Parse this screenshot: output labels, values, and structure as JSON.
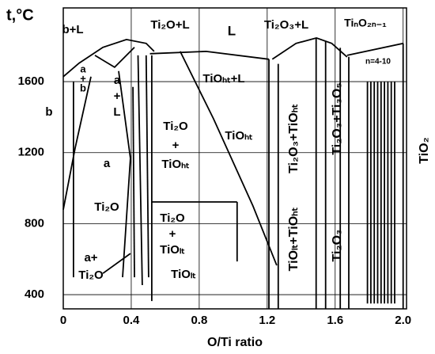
{
  "chart_data": {
    "type": "phase-diagram",
    "xlabel": "O/Ti ratio",
    "ylabel": "t,°C",
    "xlim": [
      0,
      2.02
    ],
    "ylim": [
      320,
      2015
    ],
    "xticks": [
      0,
      0.4,
      0.8,
      1.2,
      1.6,
      {
        "value": 2,
        "label": "2.0"
      }
    ],
    "yticks": [
      400,
      800,
      1200,
      1600
    ],
    "grid": true,
    "series": [
      {
        "color": "#000",
        "x": [
          0,
          0.093,
          0.233,
          0.372,
          0.488,
          0.535
        ],
        "values": [
          1628,
          1704,
          1793,
          1837,
          1815,
          1770
        ]
      },
      {
        "color": "#000",
        "x": [
          0.51,
          0.84,
          1.21
        ],
        "values": [
          1757,
          1770,
          1726
        ]
      },
      {
        "color": "#000",
        "x": [
          1.23,
          1.37,
          1.49,
          1.58,
          1.67
        ],
        "values": [
          1726,
          1815,
          1846,
          1815,
          1739
        ]
      },
      {
        "color": "#000",
        "x": [
          1.67,
          2.0
        ],
        "values": [
          1748,
          1815
        ]
      },
      {
        "color": "#000",
        "x": [
          0.186,
          0.302,
          0.419
        ],
        "values": [
          1748,
          1681,
          1793
        ]
      },
      {
        "color": "#000",
        "x": [
          0,
          0.07,
          0.163
        ],
        "values": [
          879,
          1226,
          1628
        ]
      },
      {
        "color": "#000",
        "x": [
          0.06,
          0.06
        ],
        "values": [
          1600,
          498
        ]
      },
      {
        "color": "#000",
        "x": [
          0.326,
          0.395,
          0.349
        ],
        "values": [
          1659,
          1168,
          498
        ]
      },
      {
        "color": "#000",
        "x": [
          0.41,
          0.419
        ],
        "values": [
          1570,
          498
        ]
      },
      {
        "color": "#000",
        "x": [
          0.44,
          0.465
        ],
        "values": [
          1748,
          454
        ]
      },
      {
        "color": "#000",
        "x": [
          0.488,
          0.502
        ],
        "values": [
          1748,
          498
        ]
      },
      {
        "color": "#000",
        "x": [
          0.521,
          0.521
        ],
        "values": [
          1748,
          364
        ]
      },
      {
        "color": "#000",
        "x": [
          0.688,
          0.884,
          1.116,
          1.256
        ],
        "values": [
          1770,
          1391,
          900,
          565
        ]
      },
      {
        "color": "#000",
        "x": [
          0.521,
          1.023
        ],
        "values": [
          922,
          922
        ]
      },
      {
        "color": "#000",
        "x": [
          1.023,
          1.023
        ],
        "values": [
          922,
          587
        ]
      },
      {
        "color": "#000",
        "x": [
          0.233,
          0.395
        ],
        "values": [
          520,
          632
        ]
      },
      {
        "color": "#000",
        "x": [
          1.21,
          1.21
        ],
        "values": [
          1726,
          320
        ]
      },
      {
        "color": "#000",
        "x": [
          1.265,
          1.265
        ],
        "values": [
          1700,
          320
        ]
      },
      {
        "color": "#000",
        "x": [
          1.488,
          1.488
        ],
        "values": [
          1846,
          320
        ]
      },
      {
        "color": "#000",
        "x": [
          1.544,
          1.544
        ],
        "values": [
          1830,
          320
        ]
      },
      {
        "color": "#000",
        "x": [
          1.63,
          1.63
        ],
        "values": [
          1790,
          320
        ]
      },
      {
        "color": "#000",
        "x": [
          1.68,
          1.68
        ],
        "values": [
          1740,
          320
        ]
      },
      {
        "color": "#000",
        "x": [
          1.79,
          1.79
        ],
        "values": [
          1600,
          350
        ]
      },
      {
        "color": "#000",
        "x": [
          1.81,
          1.81
        ],
        "values": [
          1600,
          350
        ]
      },
      {
        "color": "#000",
        "x": [
          1.83,
          1.83
        ],
        "values": [
          1600,
          350
        ]
      },
      {
        "color": "#000",
        "x": [
          1.85,
          1.85
        ],
        "values": [
          1600,
          350
        ]
      },
      {
        "color": "#000",
        "x": [
          1.87,
          1.87
        ],
        "values": [
          1600,
          350
        ]
      },
      {
        "color": "#000",
        "x": [
          1.89,
          1.89
        ],
        "values": [
          1600,
          350
        ]
      },
      {
        "color": "#000",
        "x": [
          1.91,
          1.91
        ],
        "values": [
          1600,
          350
        ]
      },
      {
        "color": "#000",
        "x": [
          1.93,
          1.93
        ],
        "values": [
          1600,
          350
        ]
      },
      {
        "color": "#000",
        "x": [
          1.95,
          1.95
        ],
        "values": [
          1600,
          350
        ]
      },
      {
        "color": "#000",
        "x": [
          2.0,
          2.0
        ],
        "values": [
          1815,
          320
        ]
      }
    ],
    "annotations": [
      {
        "text": "b+L"
      },
      {
        "lines": [
          "a",
          "+",
          "b"
        ]
      },
      {
        "lines": [
          "a",
          "+",
          "L"
        ]
      },
      {
        "text": "b"
      },
      {
        "text": "a"
      },
      {
        "text": "Ti₂O+L"
      },
      {
        "text": "L"
      },
      {
        "text": "Ti₂O₃+L"
      },
      {
        "text": "TiₙO₂ₙ₋₁"
      },
      {
        "text": "n=4-10"
      },
      {
        "text": "TiOₕₜ+L"
      },
      {
        "lines": [
          "Ti₂O",
          "+",
          "TiOₕₜ"
        ]
      },
      {
        "text": "TiOₕₜ"
      },
      {
        "text": "Ti₂O"
      },
      {
        "lines": [
          "Ti₂O",
          "+",
          "TiOₗₜ"
        ]
      },
      {
        "text": "TiOₗₜ"
      },
      {
        "lines": [
          "a+",
          "Ti₂O"
        ]
      },
      {
        "text": "Ti₂O₃+TiOₕₜ"
      },
      {
        "text": "TiOₗₜ+TiOₕₜ"
      },
      {
        "text": "Ti₂O₃+Ti₃O₅"
      },
      {
        "text": "Ti₂O₃"
      },
      {
        "text": "TiO₂"
      }
    ]
  }
}
